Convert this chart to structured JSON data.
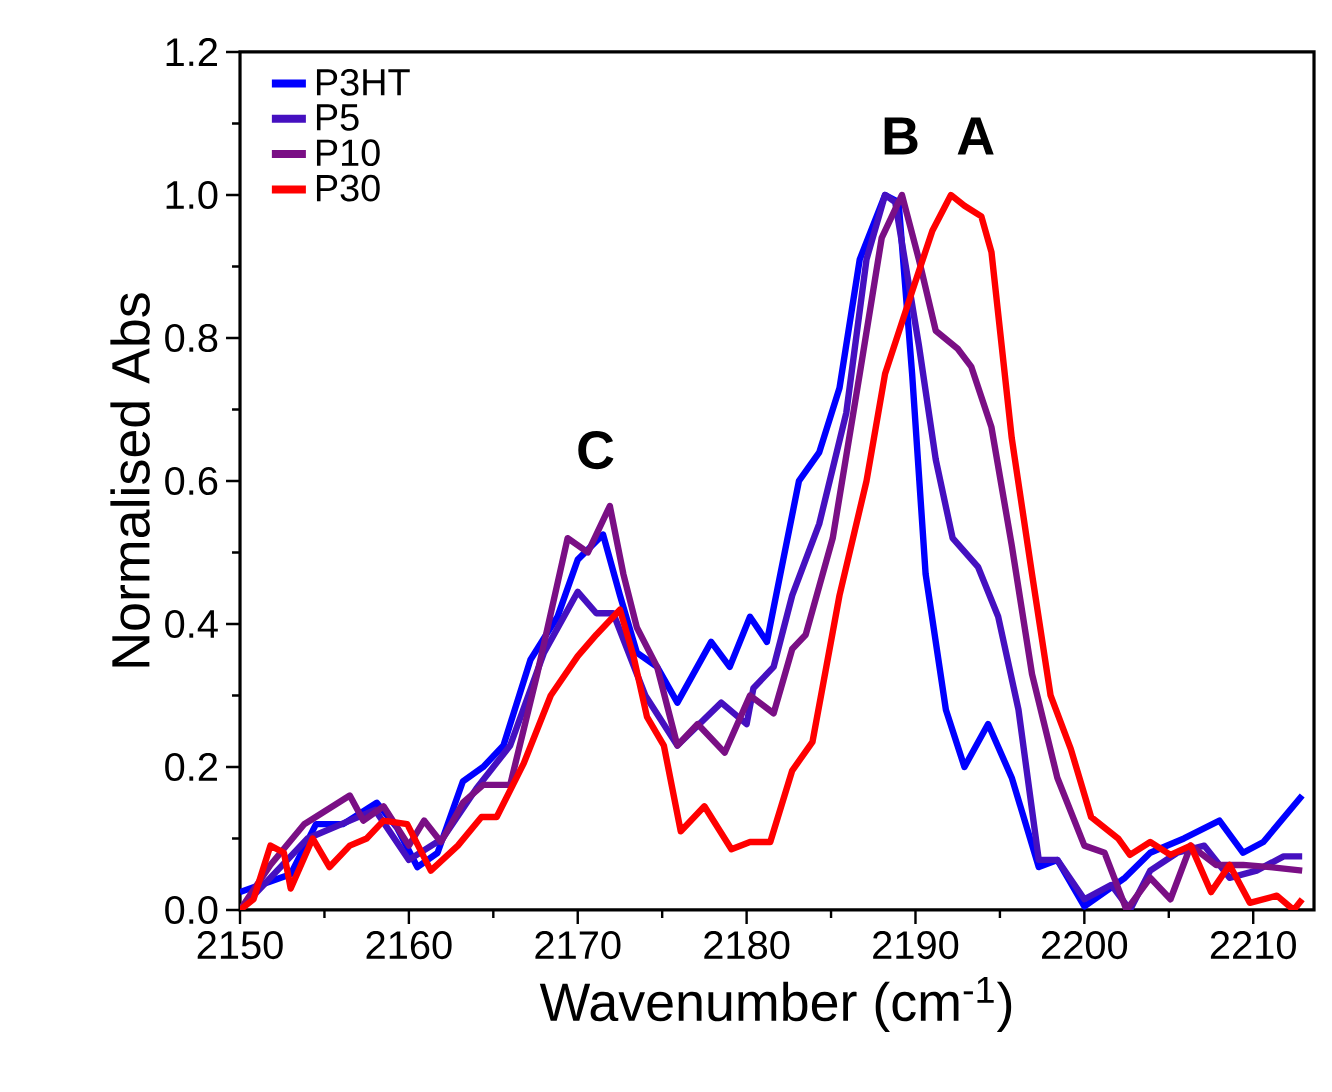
{
  "chart_data": {
    "type": "line",
    "xlabel": "Wavenumber (cm$^{-1}$)",
    "ylabel": "Normalised Abs",
    "xlim": [
      2150,
      2213.6
    ],
    "ylim": [
      0,
      1.2
    ],
    "xticks": [
      2150,
      2160,
      2170,
      2180,
      2190,
      2200,
      2210
    ],
    "yticks": [
      {
        "value": 0,
        "label": "0.0"
      },
      {
        "value": 0.2,
        "label": "0.2"
      },
      {
        "value": 0.4,
        "label": "0.4"
      },
      {
        "value": 0.6,
        "label": "0.6"
      },
      {
        "value": 0.8,
        "label": "0.8"
      },
      {
        "value": 1.0,
        "label": "1.0"
      },
      {
        "value": 1.2,
        "label": "1.2"
      }
    ],
    "grid": false,
    "legend": "top left",
    "line_style": "solid",
    "annotations": [
      "C",
      "B",
      "A"
    ],
    "series": [
      {
        "name": "P3HT",
        "color": "#0000ff",
        "x": [
          2150,
          2151.8,
          2153,
          2154.5,
          2156.1,
          2158.1,
          2159.3,
          2160.5,
          2161.7,
          2163.2,
          2164.4,
          2165.6,
          2167.2,
          2168.8,
          2170,
          2171.5,
          2172.5,
          2173.5,
          2174.7,
          2175.9,
          2177.9,
          2179,
          2180.2,
          2181.2,
          2182,
          2183.1,
          2184.3,
          2185.5,
          2186.7,
          2188.2,
          2189,
          2189.8,
          2190.6,
          2191.8,
          2192.9,
          2194.3,
          2195.7,
          2197.3,
          2198.4,
          2200,
          2201.2,
          2202.4,
          2203.9,
          2205.9,
          2208,
          2209.4,
          2210.6,
          2212.9
        ],
        "values": [
          0.025,
          0.04,
          0.05,
          0.12,
          0.12,
          0.15,
          0.115,
          0.06,
          0.08,
          0.18,
          0.2,
          0.23,
          0.35,
          0.41,
          0.49,
          0.525,
          0.44,
          0.36,
          0.34,
          0.29,
          0.375,
          0.34,
          0.41,
          0.375,
          0.47,
          0.6,
          0.64,
          0.73,
          0.91,
          1.0,
          0.99,
          0.75,
          0.47,
          0.28,
          0.2,
          0.26,
          0.185,
          0.06,
          0.07,
          0.005,
          0.025,
          0.045,
          0.08,
          0.1,
          0.125,
          0.08,
          0.095,
          0.16
        ]
      },
      {
        "name": "P5",
        "color": "#4510c0",
        "x": [
          2150,
          2152,
          2154,
          2156,
          2158,
          2160,
          2162,
          2164,
          2166,
          2168,
          2170,
          2171.1,
          2172.1,
          2174,
          2175.9,
          2178.5,
          2180,
          2180.4,
          2181.6,
          2182.7,
          2184.3,
          2185.9,
          2187.1,
          2188.2,
          2188.8,
          2190.2,
          2191.2,
          2192.2,
          2193.7,
          2194.9,
          2196.1,
          2197.3,
          2198.4,
          2200,
          2201.6,
          2202.7,
          2203.9,
          2205.5,
          2207.1,
          2208.6,
          2210.2,
          2211.8,
          2212.9
        ],
        "values": [
          0.0,
          0.05,
          0.1,
          0.12,
          0.14,
          0.07,
          0.1,
          0.17,
          0.23,
          0.36,
          0.445,
          0.415,
          0.415,
          0.3,
          0.23,
          0.29,
          0.26,
          0.31,
          0.34,
          0.44,
          0.54,
          0.695,
          0.91,
          1.0,
          0.99,
          0.79,
          0.63,
          0.52,
          0.48,
          0.41,
          0.28,
          0.07,
          0.07,
          0.015,
          0.035,
          0.0,
          0.055,
          0.08,
          0.09,
          0.045,
          0.055,
          0.075,
          0.075
        ]
      },
      {
        "name": "P10",
        "color": "#7a0f85",
        "x": [
          2150,
          2151.8,
          2153.8,
          2156.5,
          2157.3,
          2158.5,
          2160,
          2160.9,
          2161.9,
          2163.2,
          2164.4,
          2166,
          2167.6,
          2169.4,
          2170.6,
          2171.9,
          2172.7,
          2173.5,
          2174.7,
          2175.9,
          2177.1,
          2178.7,
          2180.2,
          2181.6,
          2182.7,
          2183.5,
          2185.1,
          2186.7,
          2188,
          2189.2,
          2190.2,
          2191.2,
          2192.5,
          2193.3,
          2194.5,
          2195.7,
          2196.9,
          2198.4,
          2200,
          2201.2,
          2202.5,
          2203.9,
          2205.1,
          2206.3,
          2207.8,
          2209.4,
          2211,
          2212.9
        ],
        "values": [
          0.0,
          0.063,
          0.12,
          0.16,
          0.125,
          0.145,
          0.09,
          0.125,
          0.095,
          0.15,
          0.175,
          0.175,
          0.33,
          0.52,
          0.5,
          0.565,
          0.47,
          0.395,
          0.34,
          0.23,
          0.26,
          0.22,
          0.3,
          0.275,
          0.365,
          0.385,
          0.52,
          0.75,
          0.94,
          1.0,
          0.91,
          0.81,
          0.785,
          0.76,
          0.675,
          0.51,
          0.33,
          0.185,
          0.09,
          0.08,
          0.0,
          0.045,
          0.015,
          0.09,
          0.063,
          0.063,
          0.06,
          0.055
        ]
      },
      {
        "name": "P30",
        "color": "#ff0000",
        "x": [
          2150,
          2150.8,
          2151.8,
          2152.6,
          2153,
          2154.3,
          2155.3,
          2156.5,
          2157.5,
          2158.5,
          2159.9,
          2161.3,
          2162.9,
          2164.3,
          2165.2,
          2166.8,
          2168.4,
          2170,
          2171.1,
          2172.5,
          2173.3,
          2174.1,
          2175.1,
          2176.1,
          2177.5,
          2179.1,
          2180.2,
          2181.4,
          2182.7,
          2183.9,
          2185.5,
          2187.1,
          2188.2,
          2189.8,
          2191,
          2192.1,
          2192.9,
          2193.9,
          2194.5,
          2195.7,
          2196.9,
          2198,
          2199.2,
          2200.4,
          2202,
          2202.7,
          2203.9,
          2205.1,
          2206.3,
          2207.5,
          2208.6,
          2209.8,
          2211.4,
          2212.4,
          2212.9
        ],
        "values": [
          0.0,
          0.015,
          0.09,
          0.08,
          0.03,
          0.1,
          0.06,
          0.09,
          0.1,
          0.125,
          0.12,
          0.055,
          0.09,
          0.13,
          0.13,
          0.205,
          0.3,
          0.355,
          0.385,
          0.42,
          0.355,
          0.27,
          0.23,
          0.11,
          0.145,
          0.085,
          0.095,
          0.095,
          0.195,
          0.235,
          0.44,
          0.6,
          0.75,
          0.865,
          0.95,
          1.0,
          0.985,
          0.97,
          0.92,
          0.66,
          0.47,
          0.3,
          0.225,
          0.13,
          0.1,
          0.077,
          0.095,
          0.077,
          0.09,
          0.025,
          0.063,
          0.01,
          0.02,
          0.0,
          0.015
        ]
      }
    ]
  }
}
